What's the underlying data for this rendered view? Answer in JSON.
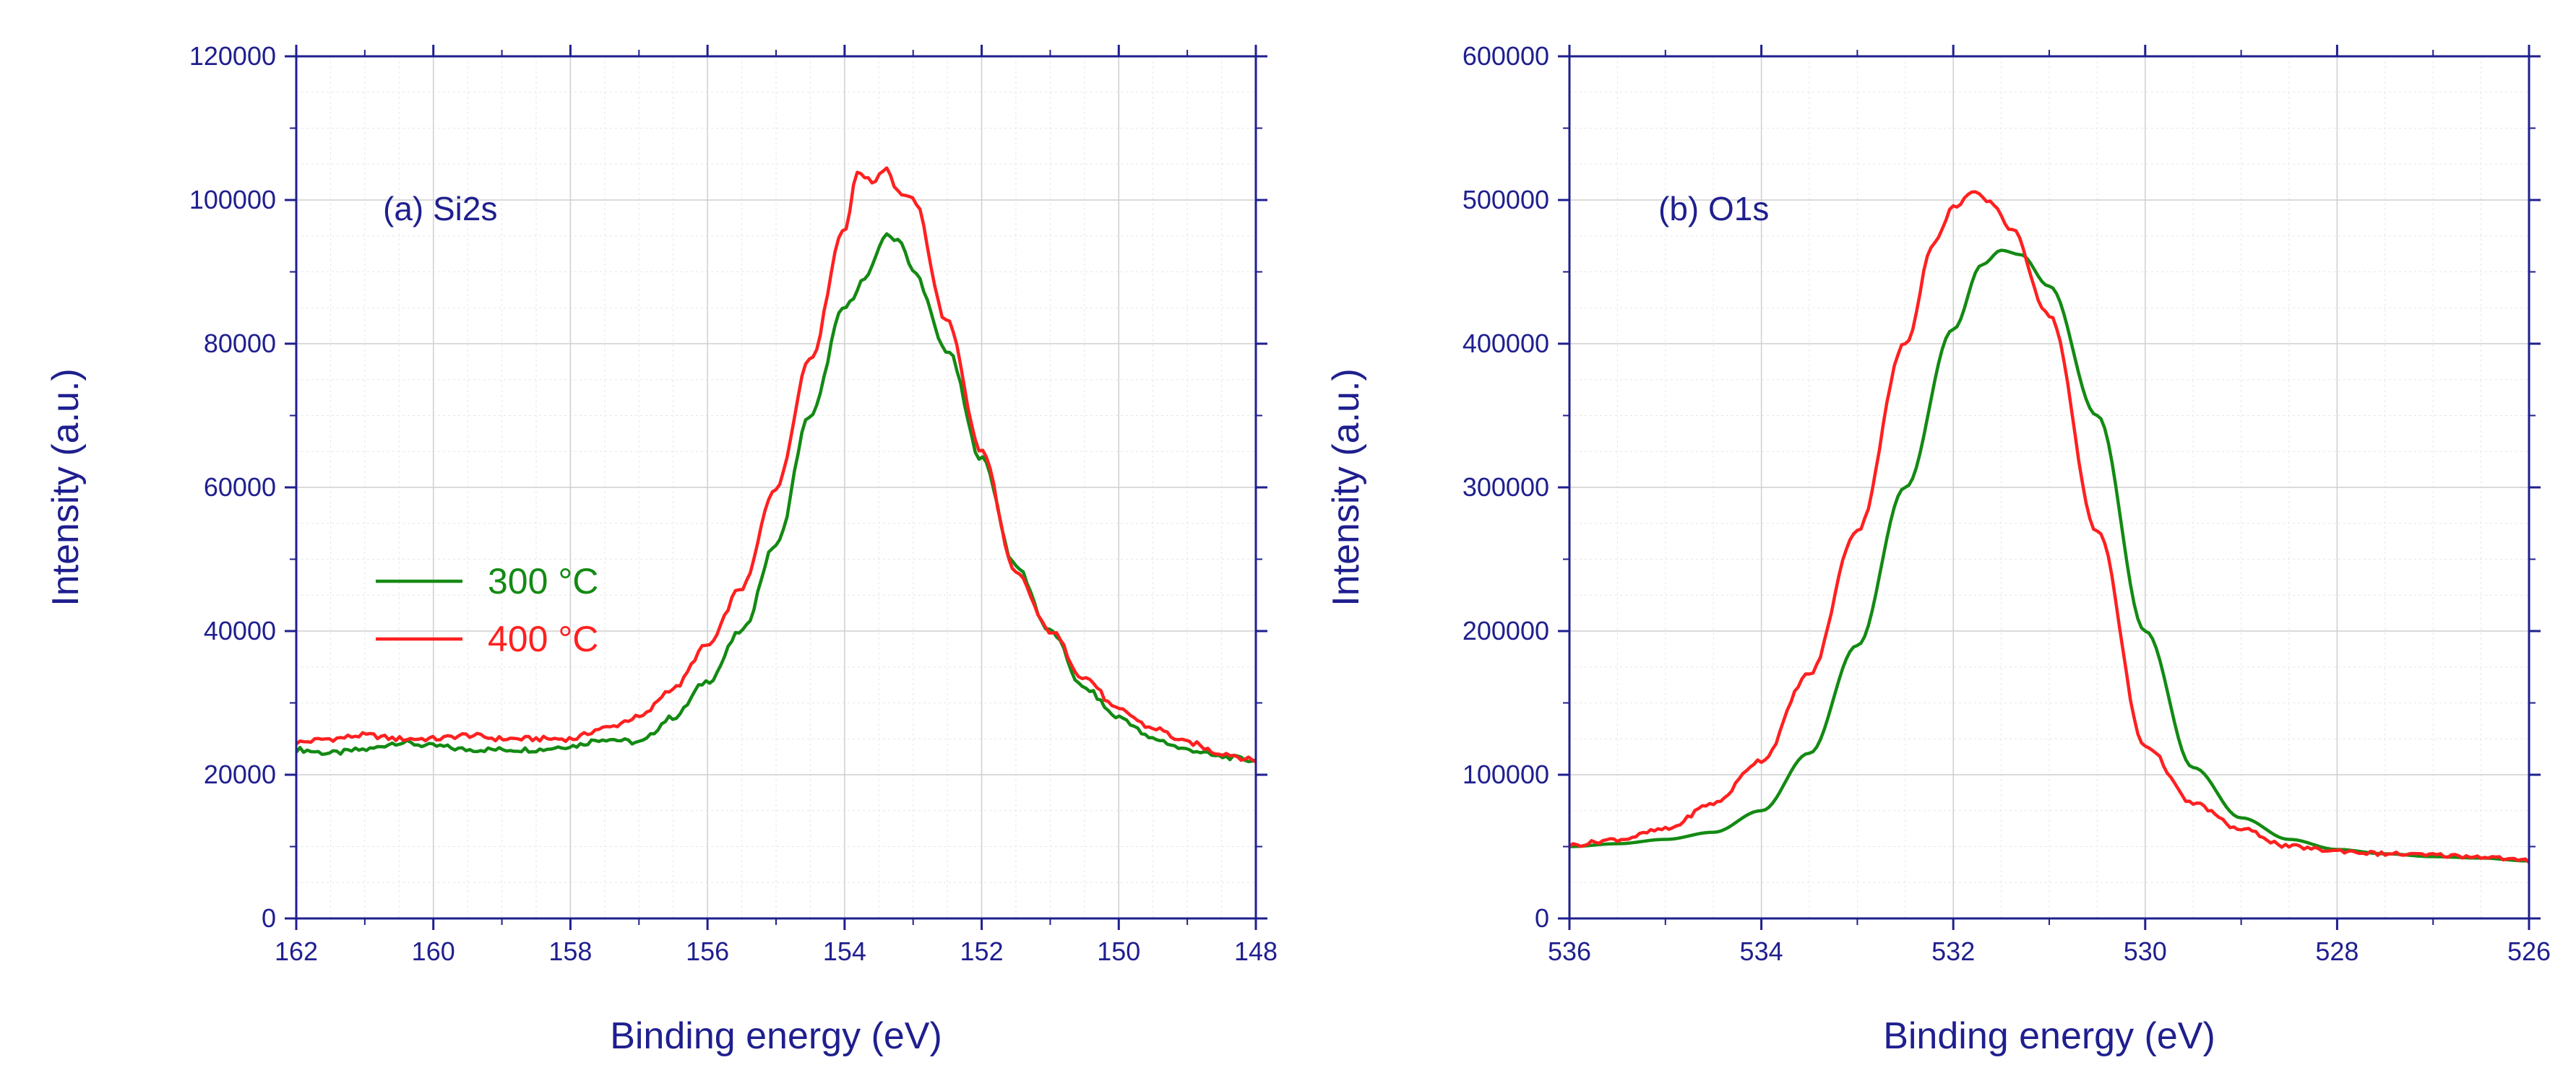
{
  "chart_data": [
    {
      "type": "line",
      "panel_label": "(a) Si2s",
      "xlabel": "Binding energy (eV)",
      "ylabel": "Intensity (a.u.)",
      "xlim": [
        162,
        148
      ],
      "ylim": [
        0,
        120000
      ],
      "x_ticks": [
        162,
        160,
        158,
        156,
        154,
        152,
        150,
        148
      ],
      "x_tick_labels": [
        "162",
        "160",
        "158",
        "156",
        "154",
        "152",
        "150",
        "148"
      ],
      "y_ticks": [
        0,
        20000,
        40000,
        60000,
        80000,
        100000,
        120000
      ],
      "y_tick_labels": [
        "0",
        "20000",
        "40000",
        "60000",
        "80000",
        "100000",
        "120000"
      ],
      "grid": true,
      "legend": [
        {
          "label": "300 °C",
          "color": "#138a13"
        },
        {
          "label": "400 °C",
          "color": "#ff2020"
        }
      ],
      "series": [
        {
          "name": "300 °C",
          "color": "#138a13",
          "x": [
            162,
            161.5,
            161,
            160.5,
            160,
            159.5,
            159,
            158.5,
            158,
            157.5,
            157,
            156.5,
            156,
            155.5,
            155,
            154.5,
            154,
            153.7,
            153.4,
            153.2,
            153,
            152.5,
            152,
            151.5,
            151,
            150.5,
            150,
            149.5,
            149,
            148.5,
            148
          ],
          "y": [
            23500,
            23000,
            23500,
            24500,
            24000,
            23500,
            23500,
            23500,
            24000,
            25000,
            24500,
            28000,
            33000,
            40000,
            52000,
            70000,
            85000,
            89000,
            95000,
            94500,
            90000,
            79000,
            64000,
            49000,
            40000,
            32000,
            28000,
            25000,
            23500,
            22500,
            22000
          ]
        },
        {
          "name": "400 °C",
          "color": "#ff2020",
          "x": [
            162,
            161.5,
            161,
            160.5,
            160,
            159.5,
            159,
            158.5,
            158,
            157.5,
            157,
            156.5,
            156,
            155.5,
            155,
            154.5,
            154,
            153.8,
            153.6,
            153.4,
            153.2,
            153,
            152.5,
            152,
            151.5,
            151,
            150.5,
            150,
            149.5,
            149,
            148.5,
            148
          ],
          "y": [
            24500,
            25000,
            25500,
            25000,
            25000,
            25500,
            25000,
            25000,
            25000,
            26500,
            28000,
            32000,
            38000,
            46000,
            60000,
            78000,
            96000,
            104000,
            102500,
            104500,
            101000,
            100000,
            83000,
            65000,
            48000,
            40000,
            33500,
            29000,
            26500,
            24500,
            23000,
            22000
          ]
        }
      ]
    },
    {
      "type": "line",
      "panel_label": "(b) O1s",
      "xlabel": "Binding energy (eV)",
      "ylabel": "Intensity (a.u.)",
      "xlim": [
        536,
        526
      ],
      "ylim": [
        0,
        600000
      ],
      "x_ticks": [
        536,
        534,
        532,
        530,
        528,
        526
      ],
      "x_tick_labels": [
        "536",
        "534",
        "532",
        "530",
        "528",
        "526"
      ],
      "y_ticks": [
        0,
        100000,
        200000,
        300000,
        400000,
        500000,
        600000
      ],
      "y_tick_labels": [
        "0",
        "100000",
        "200000",
        "300000",
        "400000",
        "500000",
        "600000"
      ],
      "grid": true,
      "series": [
        {
          "name": "300 °C",
          "color": "#138a13",
          "x": [
            536,
            535.5,
            535,
            534.5,
            534,
            533.5,
            533,
            532.5,
            532,
            531.7,
            531.5,
            531.3,
            531,
            530.5,
            530,
            529.5,
            529,
            528.5,
            528,
            527.5,
            527,
            526.5,
            526
          ],
          "y": [
            50000,
            52000,
            55000,
            60000,
            75000,
            115000,
            190000,
            300000,
            410000,
            455000,
            465000,
            462000,
            440000,
            350000,
            200000,
            105000,
            70000,
            55000,
            48000,
            45000,
            43000,
            42000,
            40000
          ],
          "smooth": true
        },
        {
          "name": "400 °C",
          "color": "#ff2020",
          "x": [
            536,
            535.5,
            535,
            534.5,
            534,
            533.5,
            533,
            532.5,
            532.2,
            532,
            531.8,
            531.6,
            531.4,
            531,
            530.5,
            530,
            529.5,
            529,
            528.5,
            528,
            527.5,
            527,
            526.5,
            526
          ],
          "y": [
            51000,
            55000,
            62000,
            80000,
            110000,
            170000,
            270000,
            400000,
            470000,
            495000,
            505000,
            498000,
            480000,
            420000,
            270000,
            120000,
            80000,
            62000,
            50000,
            47000,
            45000,
            44000,
            43000,
            40000
          ],
          "smooth": false
        }
      ]
    }
  ]
}
